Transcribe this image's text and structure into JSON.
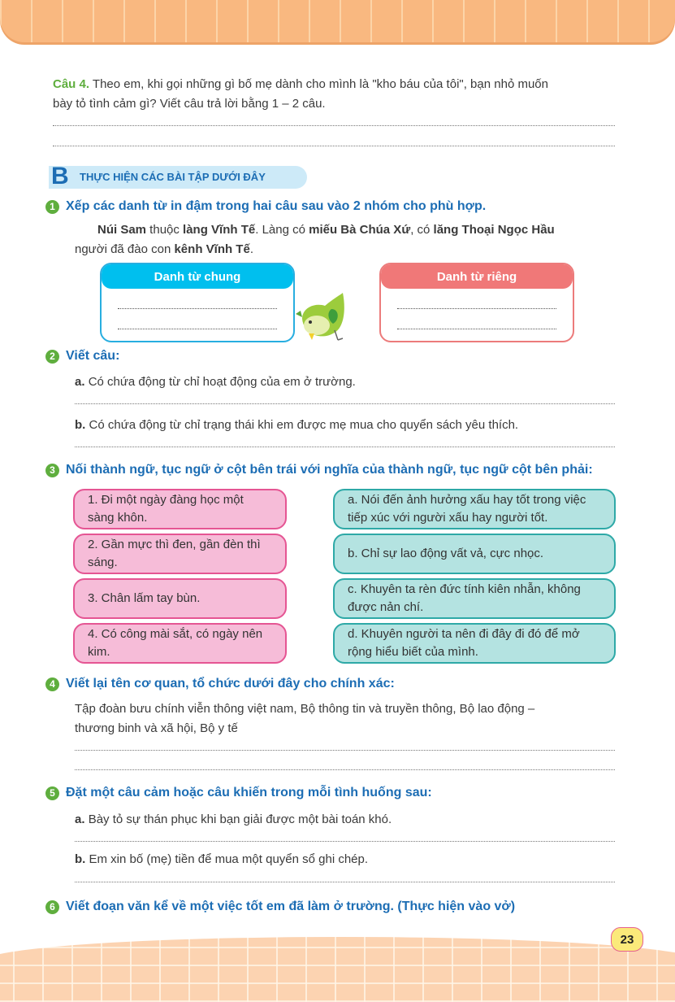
{
  "question4": {
    "label": "Câu 4.",
    "line1": "Theo em, khi gọi những gì bố mẹ dành cho mình là \"kho báu của tôi\", bạn nhỏ muốn",
    "line2": "bày tỏ tình cảm gì? Viết câu trả lời bằng 1 – 2 câu."
  },
  "section_b": {
    "letter": "B",
    "title": "THỰC HIỆN CÁC BÀI TẬP DƯỚI ĐÂY"
  },
  "ex1": {
    "num": "1",
    "title": "Xếp các danh từ in đậm trong hai câu sau vào 2 nhóm cho phù hợp.",
    "p": [
      "Núi Sam",
      " thuộc ",
      "làng Vĩnh Tế",
      ". Làng có ",
      "miếu Bà Chúa Xứ",
      ", có ",
      "lăng Thoại Ngọc Hầu"
    ],
    "p2": [
      "người đã đào con ",
      "kênh Vĩnh Tế",
      "."
    ],
    "box_common": "Danh từ chung",
    "box_proper": "Danh từ riêng",
    "colors": {
      "common": "#00bfee",
      "proper": "#f07878"
    }
  },
  "ex2": {
    "num": "2",
    "title": "Viết câu:",
    "a_label": "a.",
    "a": "Có chứa động từ chỉ hoạt động của em ở trường.",
    "b_label": "b.",
    "b": "Có chứa động từ chỉ trạng thái khi em được mẹ mua cho quyển sách yêu thích."
  },
  "ex3": {
    "num": "3",
    "title": "Nối thành ngữ, tục ngữ ở cột bên trái với nghĩa của thành ngữ, tục ngữ cột bên phải:",
    "left": [
      "1. Đi một ngày đàng học một sàng khôn.",
      "2. Gần mực thì đen, gần đèn thì sáng.",
      "3. Chân lấm tay bùn.",
      "4. Có công mài sắt, có ngày nên kim."
    ],
    "right": [
      "a. Nói đến ảnh hưởng xấu hay tốt trong việc tiếp xúc với người xấu hay người tốt.",
      "b. Chỉ sự lao động vất vả, cực nhọc.",
      "c. Khuyên ta rèn đức tính kiên nhẫn, không được nản chí.",
      "d. Khuyên người ta nên đi đây đi đó để mở rộng hiểu biết của mình."
    ]
  },
  "ex4": {
    "num": "4",
    "title": "Viết lại tên cơ quan, tổ chức dưới đây cho chính xác:",
    "line1": "Tập đoàn bưu chính viễn thông việt nam, Bộ thông tin và truyền thông, Bộ lao động –",
    "line2": "thương binh và xã hội, Bộ y tế"
  },
  "ex5": {
    "num": "5",
    "title": "Đặt một câu cảm hoặc câu khiến trong mỗi tình huống sau:",
    "a_label": "a.",
    "a": "Bày tỏ sự thán phục khi bạn giải được một bài toán khó.",
    "b_label": "b.",
    "b": "Em xin bố (mẹ) tiền để mua một quyển sổ ghi chép."
  },
  "ex6": {
    "num": "6",
    "title": "Viết đoạn văn kể về một việc tốt em đã làm ở trường. (Thực hiện vào vở)"
  },
  "page_number": "23"
}
